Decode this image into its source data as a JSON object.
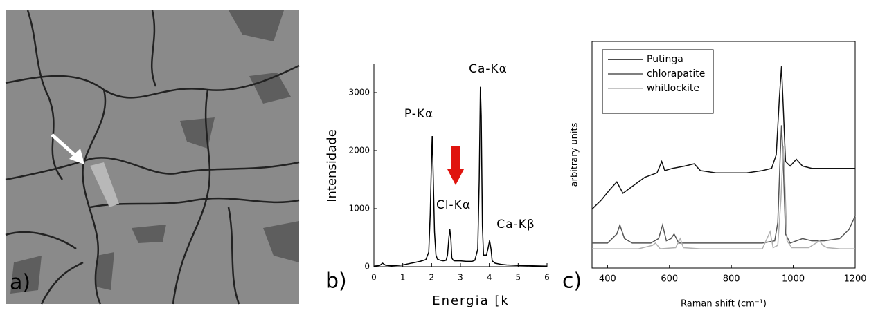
{
  "image_panel": {
    "label": "a)"
  },
  "chart_data": [
    {
      "type": "line",
      "panel_label": "b)",
      "xlabel": "Energia [k",
      "ylabel": "Intensidade",
      "x": [
        0,
        0.2,
        0.3,
        0.4,
        0.6,
        0.8,
        1.0,
        1.2,
        1.4,
        1.6,
        1.8,
        1.9,
        1.95,
        2.0,
        2.02,
        2.05,
        2.1,
        2.15,
        2.2,
        2.3,
        2.4,
        2.5,
        2.55,
        2.6,
        2.63,
        2.67,
        2.7,
        2.75,
        2.8,
        3.0,
        3.2,
        3.4,
        3.5,
        3.6,
        3.65,
        3.69,
        3.72,
        3.76,
        3.8,
        3.9,
        3.95,
        4.01,
        4.06,
        4.1,
        4.2,
        4.4,
        4.6,
        5.0,
        5.5,
        6.0
      ],
      "values": [
        10,
        20,
        60,
        25,
        15,
        20,
        30,
        50,
        70,
        90,
        120,
        250,
        900,
        1900,
        2250,
        1700,
        600,
        200,
        130,
        110,
        100,
        110,
        200,
        500,
        650,
        450,
        150,
        110,
        100,
        100,
        90,
        90,
        110,
        300,
        1500,
        3100,
        2600,
        700,
        200,
        200,
        300,
        450,
        300,
        100,
        60,
        40,
        30,
        20,
        15,
        10
      ],
      "color": "#000000",
      "xlim": [
        0,
        6
      ],
      "xticks": [
        0,
        1,
        2,
        3,
        4,
        5,
        6
      ],
      "ylim": [
        0,
        3500
      ],
      "yticks": [
        0,
        1000,
        2000,
        3000
      ],
      "annotations": [
        "P-Kα",
        "Ca-Kα",
        "Cl-Kα",
        "Ca-Kβ"
      ]
    },
    {
      "type": "line",
      "panel_label": "c)",
      "xlabel": "Raman shift (cm⁻¹)",
      "ylabel": "arbitrary units",
      "xlim": [
        350,
        1200
      ],
      "xticks": [
        400,
        600,
        800,
        1000,
        1200
      ],
      "ylim": [
        0,
        1
      ],
      "legend": "upper left",
      "series": [
        {
          "name": "Putinga",
          "color": "#111111",
          "x": [
            350,
            380,
            410,
            430,
            450,
            480,
            520,
            560,
            575,
            585,
            610,
            650,
            680,
            700,
            750,
            800,
            850,
            900,
            930,
            945,
            955,
            962,
            968,
            975,
            990,
            1010,
            1030,
            1060,
            1100,
            1150,
            1200
          ],
          "values": [
            0.26,
            0.3,
            0.35,
            0.38,
            0.33,
            0.36,
            0.4,
            0.42,
            0.47,
            0.43,
            0.44,
            0.45,
            0.46,
            0.43,
            0.42,
            0.42,
            0.42,
            0.43,
            0.44,
            0.5,
            0.75,
            0.89,
            0.7,
            0.47,
            0.45,
            0.48,
            0.45,
            0.44,
            0.44,
            0.44,
            0.44
          ]
        },
        {
          "name": "chlorapatite",
          "color": "#555555",
          "x": [
            350,
            400,
            430,
            440,
            455,
            480,
            540,
            565,
            578,
            590,
            605,
            615,
            630,
            700,
            800,
            900,
            940,
            950,
            958,
            962,
            967,
            975,
            990,
            1030,
            1060,
            1100,
            1150,
            1180,
            1200
          ],
          "values": [
            0.11,
            0.11,
            0.15,
            0.19,
            0.13,
            0.11,
            0.11,
            0.13,
            0.19,
            0.12,
            0.13,
            0.15,
            0.11,
            0.11,
            0.11,
            0.11,
            0.12,
            0.2,
            0.5,
            0.63,
            0.5,
            0.15,
            0.11,
            0.13,
            0.12,
            0.12,
            0.13,
            0.17,
            0.23
          ]
        },
        {
          "name": "whitlockite",
          "color": "#b0b0b0",
          "x": [
            350,
            500,
            545,
            555,
            570,
            620,
            635,
            645,
            700,
            800,
            900,
            915,
            925,
            935,
            950,
            960,
            968,
            972,
            980,
            995,
            1050,
            1085,
            1095,
            1110,
            1150,
            1200
          ],
          "values": [
            0.085,
            0.085,
            0.1,
            0.11,
            0.085,
            0.09,
            0.13,
            0.09,
            0.085,
            0.085,
            0.085,
            0.13,
            0.16,
            0.09,
            0.1,
            0.3,
            0.54,
            0.4,
            0.12,
            0.09,
            0.09,
            0.12,
            0.1,
            0.09,
            0.085,
            0.085
          ]
        }
      ]
    }
  ]
}
